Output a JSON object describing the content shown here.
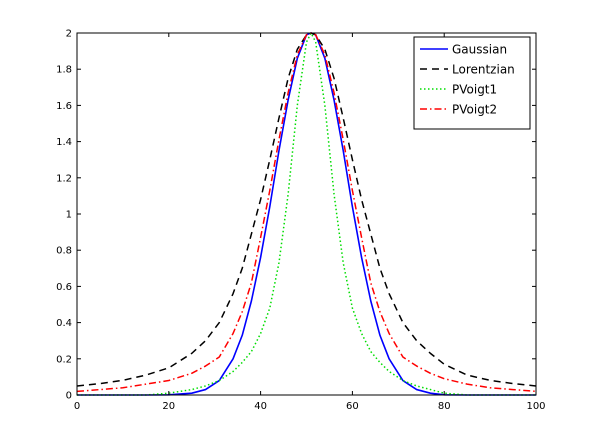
{
  "chart_data": {
    "type": "line",
    "xlim": [
      0,
      100
    ],
    "ylim": [
      0,
      2
    ],
    "xticks": [
      "0",
      "20",
      "40",
      "60",
      "80",
      "100"
    ],
    "yticks": [
      "0",
      "0.2",
      "0.4",
      "0.6",
      "0.8",
      "1",
      "1.2",
      "1.4",
      "1.6",
      "1.8",
      "2"
    ],
    "grid": false,
    "legend_position": "top-right",
    "x": [
      0,
      5,
      10,
      15,
      20,
      25,
      28,
      31,
      34,
      36,
      38,
      40,
      42,
      44,
      46,
      48,
      50,
      51,
      52,
      54,
      56,
      58,
      60,
      62,
      64,
      66,
      68,
      71,
      74,
      77,
      80,
      85,
      90,
      95,
      100
    ],
    "series": [
      {
        "name": "Gaussian",
        "color": "#0000ff",
        "dash": "solid",
        "values": [
          0.0,
          0.0,
          0.0,
          0.0,
          0.001,
          0.01,
          0.03,
          0.08,
          0.2,
          0.33,
          0.52,
          0.76,
          1.04,
          1.35,
          1.63,
          1.86,
          1.99,
          2.0,
          1.99,
          1.86,
          1.63,
          1.35,
          1.04,
          0.76,
          0.52,
          0.33,
          0.2,
          0.08,
          0.03,
          0.01,
          0.001,
          0.0,
          0.0,
          0.0,
          0.0
        ]
      },
      {
        "name": "Lorentzian",
        "color": "#000000",
        "dash": "dashed",
        "values": [
          0.05,
          0.063,
          0.081,
          0.11,
          0.15,
          0.23,
          0.3,
          0.4,
          0.56,
          0.7,
          0.89,
          1.08,
          1.3,
          1.53,
          1.75,
          1.91,
          1.99,
          2.0,
          1.99,
          1.91,
          1.75,
          1.53,
          1.3,
          1.08,
          0.89,
          0.7,
          0.56,
          0.4,
          0.3,
          0.23,
          0.17,
          0.11,
          0.081,
          0.063,
          0.05
        ]
      },
      {
        "name": "PVoigt1",
        "color": "#00dd00",
        "dash": "dotted",
        "values": [
          0.0,
          0.0,
          0.0,
          0.0,
          0.01,
          0.03,
          0.05,
          0.08,
          0.13,
          0.18,
          0.24,
          0.34,
          0.48,
          0.73,
          1.11,
          1.6,
          1.95,
          2.0,
          1.95,
          1.6,
          1.11,
          0.73,
          0.48,
          0.34,
          0.24,
          0.18,
          0.13,
          0.08,
          0.05,
          0.03,
          0.01,
          0.0,
          0.0,
          0.0,
          0.0
        ]
      },
      {
        "name": "PVoigt2",
        "color": "#ff0000",
        "dash": "dashdot",
        "values": [
          0.02,
          0.03,
          0.04,
          0.06,
          0.08,
          0.12,
          0.16,
          0.21,
          0.34,
          0.46,
          0.62,
          0.87,
          1.13,
          1.41,
          1.67,
          1.88,
          1.99,
          2.0,
          1.99,
          1.88,
          1.67,
          1.41,
          1.13,
          0.87,
          0.62,
          0.46,
          0.34,
          0.21,
          0.16,
          0.12,
          0.09,
          0.06,
          0.04,
          0.03,
          0.02
        ]
      }
    ]
  }
}
